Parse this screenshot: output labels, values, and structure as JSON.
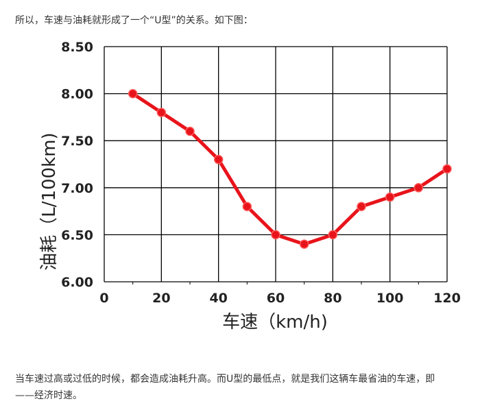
{
  "intro_text": "所以，车速与油耗就形成了一个“U型”的关系。如下图：",
  "outro": {
    "line1": "当车速过高或过低的时候，都会造成油耗升高。而U型的最低点，就是我们这辆车最省油的车速，即",
    "line2": "——经济时速。"
  },
  "chart_data": {
    "type": "line",
    "xlabel": "车速（km/h)",
    "ylabel": "油耗（L/100km)",
    "xlim": [
      0,
      120
    ],
    "ylim": [
      6.0,
      8.5
    ],
    "x_ticks": [
      "0",
      "20",
      "40",
      "60",
      "80",
      "100",
      "120"
    ],
    "y_ticks": [
      "6.00",
      "6.50",
      "7.00",
      "7.50",
      "8.00",
      "8.50"
    ],
    "grid": true,
    "line_color": "#e8141b",
    "series": [
      {
        "x": [
          10,
          20,
          30,
          40,
          50,
          60,
          70,
          80,
          90,
          100,
          110,
          120
        ],
        "values": [
          8.0,
          7.8,
          7.6,
          7.3,
          6.8,
          6.5,
          6.4,
          6.5,
          6.8,
          6.9,
          7.0,
          7.2
        ]
      }
    ]
  }
}
